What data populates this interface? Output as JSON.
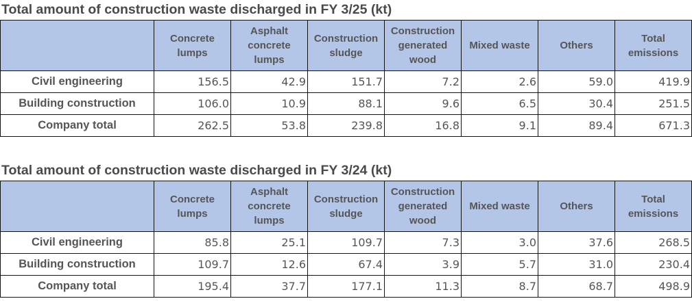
{
  "columns": [
    "Concrete lumps",
    "Asphalt concrete lumps",
    "Construction sludge",
    "Construction generated wood",
    "Mixed waste",
    "Others",
    "Total emissions"
  ],
  "tables": [
    {
      "title": "Total amount of construction waste discharged in FY 3/25 (kt)",
      "rows": [
        {
          "label": "Civil engineering",
          "values": [
            "156.5",
            "42.9",
            "151.7",
            "7.2",
            "2.6",
            "59.0",
            "419.9"
          ]
        },
        {
          "label": "Building construction",
          "values": [
            "106.0",
            "10.9",
            "88.1",
            "9.6",
            "6.5",
            "30.4",
            "251.5"
          ]
        },
        {
          "label": "Company total",
          "values": [
            "262.5",
            "53.8",
            "239.8",
            "16.8",
            "9.1",
            "89.4",
            "671.3"
          ]
        }
      ]
    },
    {
      "title": "Total amount of construction waste discharged in FY 3/24 (kt)",
      "rows": [
        {
          "label": "Civil engineering",
          "values": [
            "85.8",
            "25.1",
            "109.7",
            "7.3",
            "3.0",
            "37.6",
            "268.5"
          ]
        },
        {
          "label": "Building construction",
          "values": [
            "109.7",
            "12.6",
            "67.4",
            "3.9",
            "5.7",
            "31.0",
            "230.4"
          ]
        },
        {
          "label": "Company total",
          "values": [
            "195.4",
            "37.7",
            "177.1",
            "11.3",
            "8.7",
            "68.7",
            "498.9"
          ]
        }
      ]
    }
  ]
}
